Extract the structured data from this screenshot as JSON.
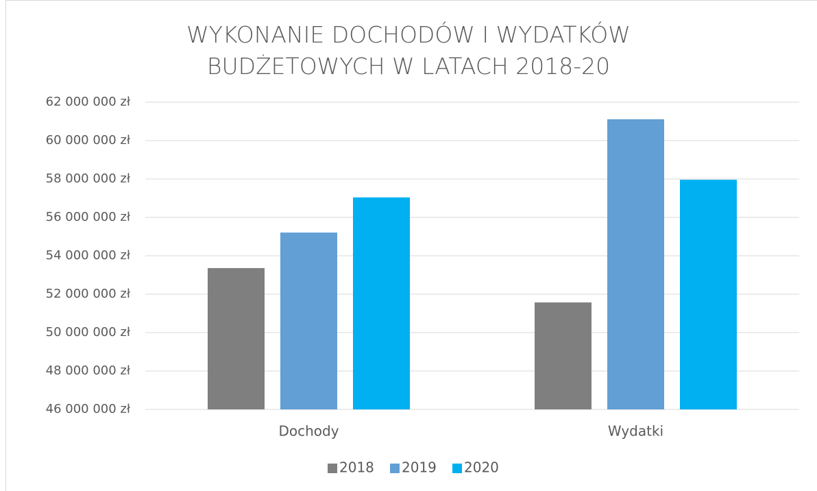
{
  "chart_data": {
    "type": "bar",
    "title": "WYKONANIE DOCHODÓW I WYDATKÓW BUDŻETOWYCH W LATACH 2018-20",
    "categories": [
      "Dochody",
      "Wydatki"
    ],
    "series": [
      {
        "name": "2018",
        "color": "#7f7f7f",
        "values": [
          53360000,
          51570000
        ]
      },
      {
        "name": "2019",
        "color": "#619fd5",
        "values": [
          55210000,
          61110000
        ]
      },
      {
        "name": "2020",
        "color": "#00b0f0",
        "values": [
          57040000,
          57960000
        ]
      }
    ],
    "ylim": [
      46000000,
      62000000
    ],
    "yticks": [
      {
        "value": 46000000,
        "label": "46 000 000 zł"
      },
      {
        "value": 48000000,
        "label": "48 000 000 zł"
      },
      {
        "value": 50000000,
        "label": "50 000 000 zł"
      },
      {
        "value": 52000000,
        "label": "52 000 000 zł"
      },
      {
        "value": 54000000,
        "label": "54 000 000 zł"
      },
      {
        "value": 56000000,
        "label": "56 000 000 zł"
      },
      {
        "value": 58000000,
        "label": "58 000 000 zł"
      },
      {
        "value": 60000000,
        "label": "60 000 000 zł"
      },
      {
        "value": 62000000,
        "label": "62 000 000 zł"
      }
    ],
    "grid": true,
    "legend": "bottom"
  }
}
